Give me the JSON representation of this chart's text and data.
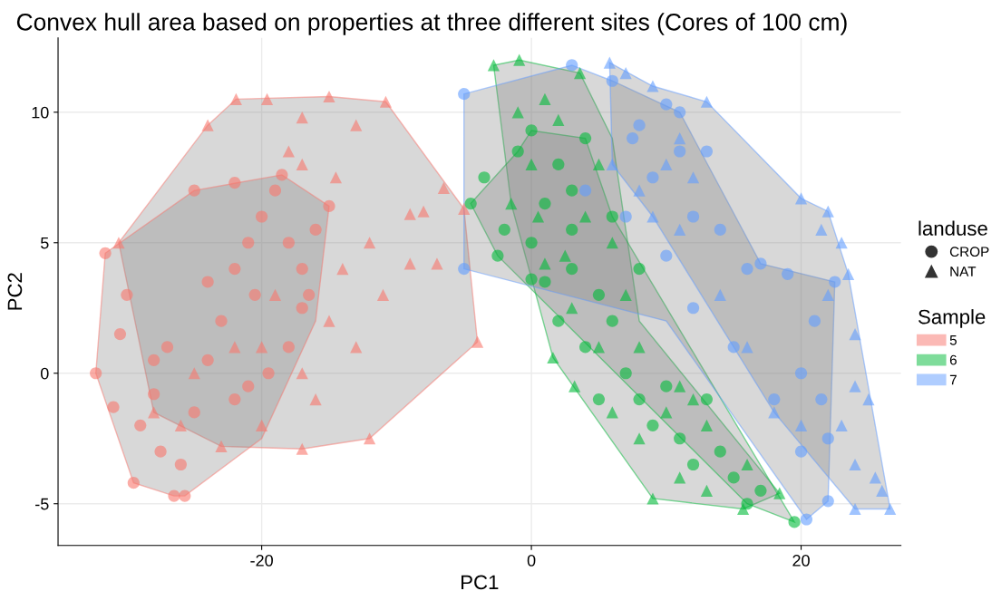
{
  "chart_data": {
    "type": "scatter",
    "title": "Convex hull area based on properties at three different sites (Cores of 100 cm)",
    "xlabel": "PC1",
    "ylabel": "PC2",
    "legend_title": [
      "landuse",
      "Sample"
    ],
    "xlim": [
      -35.1,
      27.4
    ],
    "ylim": [
      -6.6,
      12.85
    ],
    "xticks": [
      -20,
      0,
      20
    ],
    "yticks": [
      -5,
      0,
      5,
      10
    ],
    "grid": true,
    "legend": "right",
    "annotations": [
      "CROP",
      "NAT"
    ],
    "series": [
      {
        "type": "area",
        "name": "5",
        "color": "#f8766d",
        "x": [
          -30.6,
          -24,
          -21.9,
          -15,
          -10.8,
          -5,
          -4,
          -12,
          -17,
          -23,
          -28
        ],
        "values": [
          5,
          9.5,
          10.5,
          10.6,
          10.4,
          6.3,
          1.2,
          -2.5,
          -2.9,
          -2.8,
          -1.5
        ]
      },
      {
        "type": "area",
        "color": "#f8766d",
        "x": [
          -32.3,
          -31.6,
          -25,
          -18.5,
          -15,
          -16,
          -20,
          -25.7,
          -26.5,
          -29.5
        ],
        "values": [
          0,
          4.6,
          7,
          7.6,
          6.4,
          2,
          -2.5,
          -4.7,
          -4.7,
          -4.2
        ]
      },
      {
        "type": "area",
        "name": "6",
        "color": "#00ba38",
        "x": [
          -2.8,
          -0.9,
          3.6,
          6,
          8,
          18.4,
          15.7,
          9,
          1.6,
          -1.5
        ],
        "values": [
          11.8,
          12,
          11.5,
          9,
          2,
          -4.6,
          -5.2,
          -4.8,
          0.6,
          6.5
        ]
      },
      {
        "type": "area",
        "color": "#00ba38",
        "x": [
          -4.5,
          -1,
          0,
          4,
          6,
          19.5,
          16,
          -2.5
        ],
        "values": [
          6.5,
          8.5,
          9.3,
          9,
          6,
          -5.7,
          -5,
          4.5
        ]
      },
      {
        "type": "area",
        "name": "7",
        "color": "#619cff",
        "x": [
          -5,
          3,
          6,
          11,
          17,
          22.5,
          22,
          20.4,
          10,
          -5
        ],
        "values": [
          10.7,
          11.8,
          11.2,
          10,
          4.2,
          3.5,
          -4.9,
          -5.6,
          2,
          4
        ]
      },
      {
        "type": "area",
        "color": "#619cff",
        "x": [
          5.8,
          9,
          13,
          20,
          22,
          23.5,
          26.6,
          24,
          18,
          9,
          6
        ],
        "values": [
          11.9,
          11,
          10.4,
          6.7,
          6.2,
          3.8,
          -5.2,
          -5.2,
          -1.5,
          6,
          8
        ]
      },
      {
        "marker": "circle",
        "color": "#f8766d",
        "x": [
          -32.3,
          -31,
          -30.5,
          -29,
          -29.5,
          -28,
          -27.5,
          -26.5,
          -26,
          -27,
          -25,
          -24,
          -25.7,
          -23,
          -22,
          -24,
          -22,
          -21,
          -20,
          -19,
          -20.5,
          -18,
          -17,
          -17,
          -18,
          -16,
          -19.5,
          -21,
          -28,
          -30,
          -31.6,
          -25,
          -22,
          -18.5,
          -15,
          -16.5
        ],
        "values": [
          0,
          -1.3,
          1.5,
          -2,
          -4.2,
          -0.8,
          -3,
          -4.7,
          -3.5,
          1,
          -1.5,
          0.5,
          -4.7,
          2,
          -1,
          3.5,
          4,
          5,
          6,
          7,
          3,
          5,
          4,
          2.5,
          1,
          5.5,
          0,
          -0.5,
          0.5,
          3,
          4.6,
          7,
          7.3,
          7.6,
          6.4,
          3
        ]
      },
      {
        "marker": "triangle",
        "color": "#f8766d",
        "x": [
          -30.6,
          -24,
          -21.9,
          -19.6,
          -15,
          -10.8,
          -17,
          -13,
          -17,
          -14.5,
          -6.5,
          -5,
          -8,
          -9,
          -7,
          -9,
          -4,
          -12,
          -17,
          -23,
          -20,
          -16,
          -13,
          -11,
          -12,
          -14,
          -19,
          -22,
          -25,
          -26,
          -28,
          -20,
          -17,
          -15,
          -18
        ],
        "values": [
          5,
          9.5,
          10.5,
          10.5,
          10.6,
          10.4,
          9.8,
          9.5,
          8,
          7.5,
          7.1,
          6.3,
          6.2,
          6.1,
          4.2,
          4.2,
          1.2,
          -2.5,
          -2.9,
          -2.8,
          -2,
          -1,
          1,
          3,
          5,
          4,
          3,
          1,
          0,
          -2,
          -1.5,
          1,
          0,
          2,
          8.5
        ]
      },
      {
        "marker": "circle",
        "color": "#00ba38",
        "x": [
          -4.5,
          -3.5,
          -1,
          0,
          2,
          3,
          -2,
          0,
          1,
          3,
          5,
          2,
          4,
          6,
          7,
          5,
          8,
          9,
          10,
          11,
          12,
          14,
          15,
          16,
          19.5,
          17,
          13,
          6,
          4,
          8,
          1,
          3,
          0,
          -2.5
        ],
        "values": [
          6.5,
          7.5,
          8.5,
          9.3,
          8,
          7,
          5.5,
          5,
          3.5,
          4,
          3,
          2,
          1,
          2,
          0,
          -1,
          -1,
          -2,
          -0.5,
          -2.5,
          -3.5,
          -3,
          -4,
          -5,
          -5.7,
          -4.5,
          -1,
          6,
          9,
          4,
          6.5,
          5.5,
          3.6,
          4.5
        ]
      },
      {
        "marker": "triangle",
        "color": "#00ba38",
        "x": [
          -2.8,
          -0.9,
          3.6,
          1,
          -1,
          2,
          0,
          5,
          4,
          6,
          1,
          3,
          5,
          1.6,
          3.2,
          6,
          8,
          9,
          11,
          13,
          15.7,
          18.4,
          16,
          13,
          10,
          8,
          7,
          -1.5,
          0.5,
          2.5,
          11,
          12
        ],
        "values": [
          11.8,
          12,
          11.5,
          10.5,
          10,
          9.7,
          8,
          8,
          6,
          5,
          4.2,
          2.5,
          1,
          0.6,
          -0.5,
          -1.5,
          -2.5,
          -4.8,
          -4,
          -4.5,
          -5.2,
          -4.6,
          -3.5,
          -2,
          -1.5,
          1,
          3,
          6.5,
          6,
          4.5,
          -0.5,
          -1
        ]
      },
      {
        "marker": "circle",
        "color": "#619cff",
        "x": [
          -5,
          -5,
          3,
          6,
          10,
          8,
          11,
          9,
          13,
          12,
          14,
          17,
          16,
          19,
          22.5,
          21,
          20,
          21.5,
          22,
          22,
          20.4,
          18,
          15,
          12,
          10,
          7,
          7.5,
          4,
          11,
          20
        ],
        "values": [
          10.7,
          4,
          11.8,
          11.2,
          10.3,
          9.5,
          8.5,
          7.5,
          8.5,
          6,
          5.5,
          4.2,
          4,
          3.8,
          3.5,
          2,
          0,
          -1,
          -2.5,
          -4.9,
          -5.6,
          -1,
          1,
          2.5,
          4.5,
          6,
          9,
          7,
          10,
          -3
        ]
      },
      {
        "marker": "triangle",
        "color": "#619cff",
        "x": [
          5.8,
          7,
          9,
          11,
          13,
          10,
          8,
          12,
          20,
          22,
          21.5,
          23,
          23.5,
          22,
          24,
          24,
          25,
          23,
          24,
          26.6,
          24,
          26,
          25.5,
          20,
          18,
          16,
          14,
          11,
          9,
          6
        ],
        "values": [
          11.9,
          11.5,
          11,
          9,
          10.4,
          8,
          7,
          7.5,
          6.7,
          6.2,
          5.5,
          5,
          3.8,
          3,
          1.5,
          -0.5,
          -1,
          -2,
          -3.5,
          -5.2,
          -5.2,
          -4.5,
          -4,
          -2,
          -1.5,
          1,
          3,
          5.5,
          6,
          8
        ]
      }
    ]
  }
}
